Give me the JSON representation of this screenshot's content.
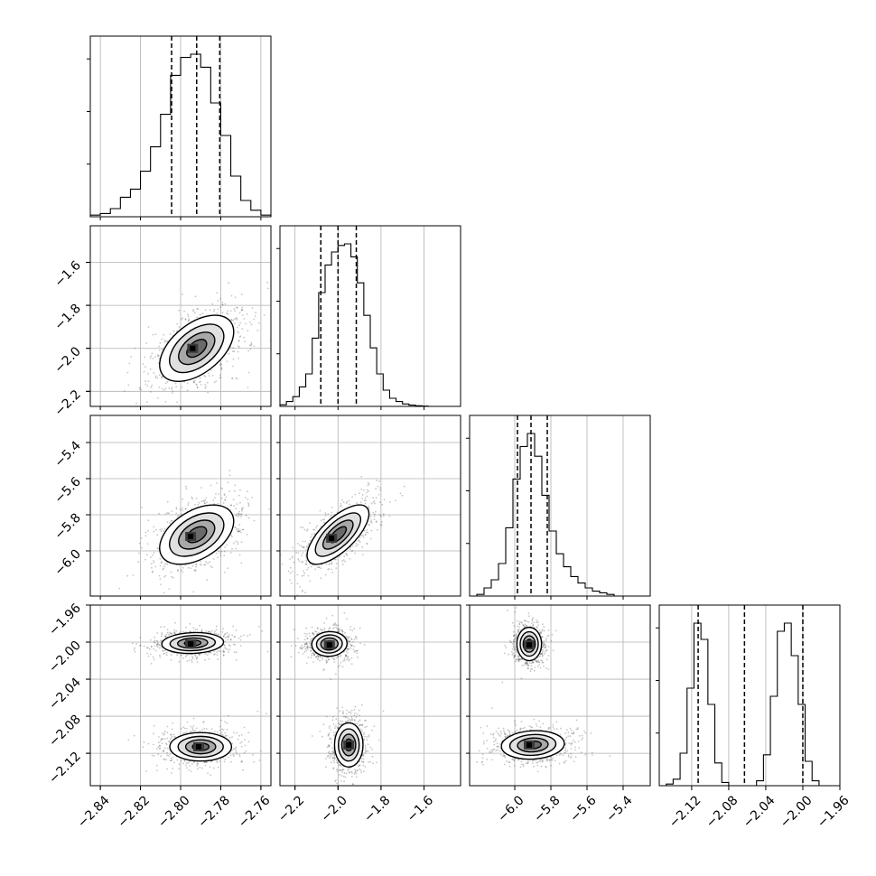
{
  "chart_data": {
    "type": "corner",
    "title": "",
    "parameters": [
      {
        "index": 0,
        "range": [
          -2.845,
          -2.755
        ],
        "ticks": [
          -2.84,
          -2.82,
          -2.8,
          -2.78,
          -2.76
        ],
        "tick_labels": [
          "−2.84",
          "−2.82",
          "−2.80",
          "−2.78",
          "−2.76"
        ],
        "quantiles": [
          -2.8045,
          -2.792,
          -2.7805
        ],
        "histogram": {
          "bin_edges": [
            -2.845,
            -2.84,
            -2.835,
            -2.83,
            -2.825,
            -2.82,
            -2.815,
            -2.81,
            -2.805,
            -2.8,
            -2.795,
            -2.79,
            -2.785,
            -2.78,
            -2.775,
            -2.77,
            -2.765,
            -2.76,
            -2.755
          ],
          "heights": [
            0.01,
            0.02,
            0.05,
            0.12,
            0.17,
            0.28,
            0.43,
            0.63,
            0.87,
            0.98,
            1.0,
            0.92,
            0.7,
            0.5,
            0.25,
            0.1,
            0.04,
            0.01
          ]
        }
      },
      {
        "index": 1,
        "range": [
          -2.27,
          -1.43
        ],
        "ticks": [
          -2.2,
          -2.0,
          -1.8,
          -1.6
        ],
        "tick_labels": [
          "−2.2",
          "−2.0",
          "−1.8",
          "−1.6"
        ],
        "quantiles": [
          -2.08,
          -2.0,
          -1.915
        ],
        "histogram": {
          "bin_edges": [
            -2.27,
            -2.24,
            -2.21,
            -2.18,
            -2.15,
            -2.12,
            -2.09,
            -2.06,
            -2.03,
            -2.0,
            -1.97,
            -1.94,
            -1.91,
            -1.88,
            -1.85,
            -1.82,
            -1.79,
            -1.76,
            -1.73,
            -1.7,
            -1.67,
            -1.64,
            -1.61,
            -1.58,
            -1.55,
            -1.52,
            -1.49,
            -1.46,
            -1.43
          ],
          "heights": [
            0.01,
            0.03,
            0.06,
            0.12,
            0.2,
            0.42,
            0.7,
            0.87,
            0.95,
            0.99,
            1.0,
            0.92,
            0.76,
            0.56,
            0.36,
            0.2,
            0.1,
            0.05,
            0.03,
            0.015,
            0.008,
            0.004,
            0.002,
            0.0,
            0.0,
            0.0,
            0.0,
            0.0
          ]
        }
      },
      {
        "index": 2,
        "range": [
          -6.25,
          -5.25
        ],
        "ticks": [
          -6.0,
          -5.8,
          -5.6,
          -5.4
        ],
        "tick_labels": [
          "−6.0",
          "−5.8",
          "−5.6",
          "−5.4"
        ],
        "quantiles": [
          -5.985,
          -5.91,
          -5.82
        ],
        "histogram": {
          "bin_edges": [
            -6.25,
            -6.21,
            -6.17,
            -6.13,
            -6.09,
            -6.05,
            -6.01,
            -5.97,
            -5.93,
            -5.89,
            -5.85,
            -5.81,
            -5.77,
            -5.73,
            -5.69,
            -5.65,
            -5.61,
            -5.57,
            -5.53,
            -5.49,
            -5.45,
            -5.41,
            -5.37,
            -5.33,
            -5.29,
            -5.25
          ],
          "heights": [
            0.0,
            0.01,
            0.05,
            0.1,
            0.2,
            0.42,
            0.72,
            0.92,
            1.0,
            0.86,
            0.62,
            0.4,
            0.26,
            0.18,
            0.12,
            0.08,
            0.05,
            0.03,
            0.02,
            0.01,
            0.0,
            0.0,
            0.0,
            0.0,
            0.0
          ]
        }
      },
      {
        "index": 3,
        "range": [
          -2.155,
          -1.96
        ],
        "ticks": [
          -2.12,
          -2.08,
          -2.04,
          -2.0,
          -1.96
        ],
        "tick_labels": [
          "−2.12",
          "−2.08",
          "−2.04",
          "−2.00",
          "−1.96"
        ],
        "quantiles": [
          -2.113,
          -2.063,
          -2.0
        ],
        "histogram": {
          "bin_edges": [
            -2.155,
            -2.1475,
            -2.14,
            -2.1325,
            -2.125,
            -2.1175,
            -2.11,
            -2.1025,
            -2.095,
            -2.0875,
            -2.08,
            -2.0725,
            -2.065,
            -2.0575,
            -2.05,
            -2.0425,
            -2.035,
            -2.0275,
            -2.02,
            -2.0125,
            -2.005,
            -1.9975,
            -1.99,
            -1.9825,
            -1.975,
            -1.9675,
            -1.96
          ],
          "heights": [
            0.0,
            0.01,
            0.04,
            0.2,
            0.6,
            1.0,
            0.9,
            0.5,
            0.14,
            0.02,
            0.0,
            0.0,
            0.0,
            0.0,
            0.03,
            0.19,
            0.55,
            0.95,
            1.0,
            0.8,
            0.5,
            0.15,
            0.03,
            0.0,
            0.0,
            0.0
          ]
        }
      }
    ],
    "pairs": [
      {
        "x": 0,
        "y": 1,
        "modes": [
          {
            "mx": -2.792,
            "my": -2.0,
            "sx": 0.009,
            "sy": 0.075,
            "rho": 0.5,
            "peak": [
              -2.794,
              -2.0
            ]
          }
        ]
      },
      {
        "x": 0,
        "y": 2,
        "modes": [
          {
            "mx": -2.792,
            "my": -5.91,
            "sx": 0.009,
            "sy": 0.08,
            "rho": 0.45,
            "peak": [
              -2.795,
              -5.92
            ]
          }
        ]
      },
      {
        "x": 1,
        "y": 2,
        "modes": [
          {
            "mx": -2.0,
            "my": -5.91,
            "sx": 0.07,
            "sy": 0.08,
            "rho": 0.7,
            "peak": [
              -2.03,
              -5.93
            ]
          }
        ]
      },
      {
        "x": 0,
        "y": 3,
        "modes": [
          {
            "mx": -2.794,
            "my": -2.001,
            "sx": 0.0075,
            "sy": 0.0055,
            "rho": 0.1,
            "peak": [
              -2.795,
              -2.002
            ]
          },
          {
            "mx": -2.79,
            "my": -2.113,
            "sx": 0.0075,
            "sy": 0.0075,
            "rho": 0.0,
            "peak": [
              -2.791,
              -2.113
            ]
          }
        ]
      },
      {
        "x": 1,
        "y": 3,
        "modes": [
          {
            "mx": -2.04,
            "my": -2.002,
            "sx": 0.04,
            "sy": 0.0065,
            "rho": 0.05,
            "peak": [
              -2.04,
              -2.003
            ]
          },
          {
            "mx": -1.95,
            "my": -2.111,
            "sx": 0.05,
            "sy": 0.0075,
            "rho": 0.0,
            "peak": [
              -1.95,
              -2.111
            ]
          }
        ]
      },
      {
        "x": 2,
        "y": 3,
        "modes": [
          {
            "mx": -5.92,
            "my": -2.002,
            "sx": 0.045,
            "sy": 0.0065,
            "rho": 0.0,
            "peak": [
              -5.92,
              -2.003
            ]
          },
          {
            "mx": -5.9,
            "my": -2.111,
            "sx": 0.085,
            "sy": 0.0075,
            "rho": 0.1,
            "peak": [
              -5.92,
              -2.111
            ]
          }
        ]
      }
    ],
    "contour_levels": [
      "0.118",
      "0.393",
      "0.675",
      "0.865"
    ],
    "grid": true,
    "legend": "none",
    "colors": {
      "line": "#000000",
      "grid": "#b0b0b0",
      "scatter": "#333333",
      "background": "#ffffff"
    }
  }
}
